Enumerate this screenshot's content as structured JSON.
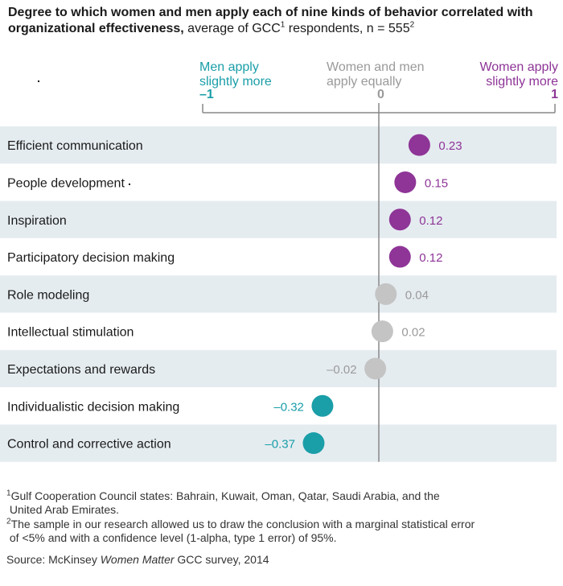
{
  "title": {
    "bold": "Degree to which women and men apply each of nine kinds of behavior correlated with organizational effectiveness,",
    "normal": " average of GCC",
    "sup1": "1",
    "normal2": " respondents, n = 555",
    "sup2": "2"
  },
  "headers": {
    "left_line1": "Men apply",
    "left_line2": "slightly more",
    "mid_line1": "Women and men",
    "mid_line2": "apply equally",
    "right_line1": "Women apply",
    "right_line2": "slightly more",
    "tick_neg": "–1",
    "tick_zero": "0",
    "tick_pos": "1"
  },
  "colors": {
    "women": "#8e3597",
    "equal": "#c4c4c4",
    "men": "#1a9ea8",
    "band": "#e5ecf0"
  },
  "chart_data": {
    "type": "scatter",
    "xlim": [
      -1,
      1
    ],
    "categories": [
      "Efficient communication",
      "People development",
      "Inspiration",
      "Participatory decision making",
      "Role modeling",
      "Intellectual stimulation",
      "Expectations and rewards",
      "Individualistic decision making",
      "Control and corrective action"
    ],
    "values": [
      0.23,
      0.15,
      0.12,
      0.12,
      0.04,
      0.02,
      -0.02,
      -0.32,
      -0.37
    ],
    "labels": [
      "0.23",
      "0.15",
      "0.12",
      "0.12",
      "0.04",
      "0.02",
      "–0.02",
      "–0.32",
      "–0.37"
    ],
    "groups": [
      "women",
      "women",
      "women",
      "women",
      "equal",
      "equal",
      "equal",
      "men",
      "men"
    ]
  },
  "footnotes": {
    "fn1_sup": "1",
    "fn1_line1": "Gulf Cooperation Council states: Bahrain, Kuwait, Oman, Qatar, Saudi Arabia, and the",
    "fn1_line2": "United Arab Emirates.",
    "fn2_sup": "2",
    "fn2_line1": "The sample in our research allowed us to draw the conclusion with a marginal statistical error",
    "fn2_line2": "of <5% and with a confidence level (1-alpha, type 1 error) of 95%.",
    "source_prefix": "Source: McKinsey ",
    "source_italic": "Women Matter",
    "source_suffix": " GCC survey, 2014"
  }
}
